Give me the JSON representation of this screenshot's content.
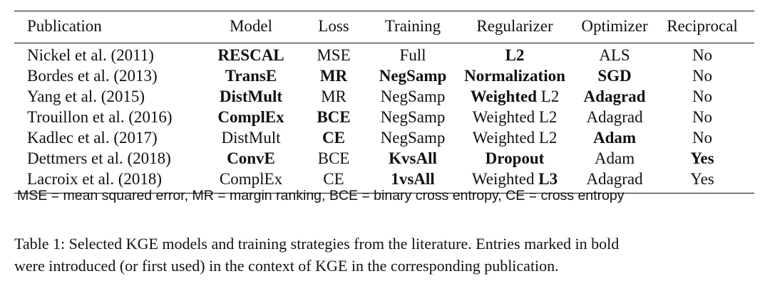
{
  "table": {
    "header": {
      "publication": "Publication",
      "model": "Model",
      "loss": "Loss",
      "training": "Training",
      "regularizer": "Regularizer",
      "optimizer": "Optimizer",
      "reciprocal": "Reciprocal"
    },
    "rows": [
      {
        "publication": "Nickel et al. (2011)",
        "model": "RESCAL",
        "model_bold": true,
        "loss": "MSE",
        "loss_bold": false,
        "training": "Full",
        "training_bold": false,
        "reg_a": "L2",
        "reg_a_bold": true,
        "reg_b": "",
        "reg_b_bold": false,
        "optimizer": "ALS",
        "optimizer_bold": false,
        "reciprocal": "No",
        "reciprocal_bold": false
      },
      {
        "publication": "Bordes et al. (2013)",
        "model": "TransE",
        "model_bold": true,
        "loss": "MR",
        "loss_bold": true,
        "training": "NegSamp",
        "training_bold": true,
        "reg_a": "Normalization",
        "reg_a_bold": true,
        "reg_b": "",
        "reg_b_bold": false,
        "optimizer": "SGD",
        "optimizer_bold": true,
        "reciprocal": "No",
        "reciprocal_bold": false
      },
      {
        "publication": "Yang et al. (2015)",
        "model": "DistMult",
        "model_bold": true,
        "loss": "MR",
        "loss_bold": false,
        "training": "NegSamp",
        "training_bold": false,
        "reg_a": "Weighted",
        "reg_a_bold": true,
        "reg_b": "L2",
        "reg_b_bold": false,
        "optimizer": "Adagrad",
        "optimizer_bold": true,
        "reciprocal": "No",
        "reciprocal_bold": false
      },
      {
        "publication": "Trouillon et al. (2016)",
        "model": "ComplEx",
        "model_bold": true,
        "loss": "BCE",
        "loss_bold": true,
        "training": "NegSamp",
        "training_bold": false,
        "reg_a": "Weighted L2",
        "reg_a_bold": false,
        "reg_b": "",
        "reg_b_bold": false,
        "optimizer": "Adagrad",
        "optimizer_bold": false,
        "reciprocal": "No",
        "reciprocal_bold": false
      },
      {
        "publication": "Kadlec et al. (2017)",
        "model": "DistMult",
        "model_bold": false,
        "loss": "CE",
        "loss_bold": true,
        "training": "NegSamp",
        "training_bold": false,
        "reg_a": "Weighted L2",
        "reg_a_bold": false,
        "reg_b": "",
        "reg_b_bold": false,
        "optimizer": "Adam",
        "optimizer_bold": true,
        "reciprocal": "No",
        "reciprocal_bold": false
      },
      {
        "publication": "Dettmers et al. (2018)",
        "model": "ConvE",
        "model_bold": true,
        "loss": "BCE",
        "loss_bold": false,
        "training": "KvsAll",
        "training_bold": true,
        "reg_a": "Dropout",
        "reg_a_bold": true,
        "reg_b": "",
        "reg_b_bold": false,
        "optimizer": "Adam",
        "optimizer_bold": false,
        "reciprocal": "Yes",
        "reciprocal_bold": true
      },
      {
        "publication": "Lacroix et al. (2018)",
        "model": "ComplEx",
        "model_bold": false,
        "loss": "CE",
        "loss_bold": false,
        "training": "1vsAll",
        "training_bold": true,
        "reg_a": "Weighted",
        "reg_a_bold": false,
        "reg_b": "L3",
        "reg_b_bold": true,
        "optimizer": "Adagrad",
        "optimizer_bold": false,
        "reciprocal": "Yes",
        "reciprocal_bold": false
      }
    ],
    "footnote": "MSE = mean squared error, MR = margin ranking, BCE = binary cross entropy, CE = cross entropy"
  },
  "caption": {
    "line1": "Table 1: Selected KGE models and training strategies from the literature.  Entries marked in bold",
    "line2": "were introduced (or first used) in the context of KGE in the corresponding publication."
  }
}
